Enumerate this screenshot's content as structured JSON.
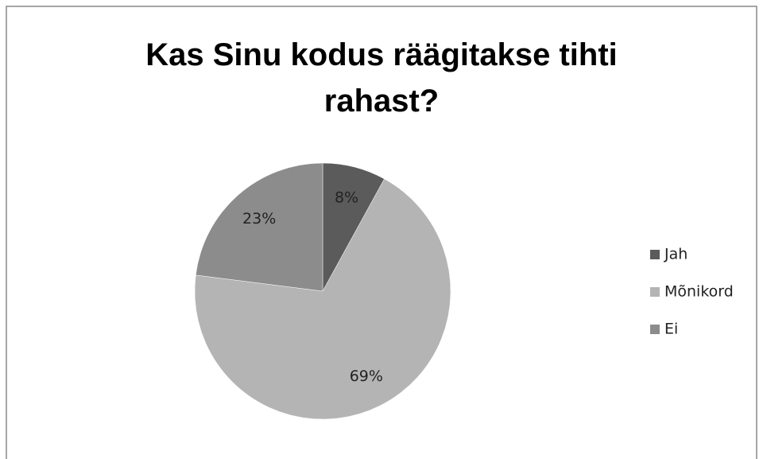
{
  "chart_data": {
    "type": "pie",
    "title": "Kas Sinu kodus räägitakse tihti rahast?",
    "categories": [
      "Jah",
      "Mõnikord",
      "Ei"
    ],
    "values": [
      8,
      69,
      23
    ],
    "value_labels": [
      "8%",
      "69%",
      "23%"
    ],
    "colors": [
      "#5b5b5b",
      "#b4b4b4",
      "#8c8c8c"
    ],
    "legend": "right"
  }
}
